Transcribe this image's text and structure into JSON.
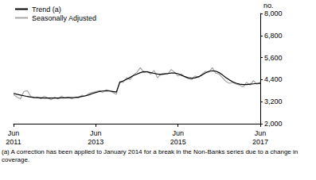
{
  "chart_data": {
    "type": "line",
    "ylabel": "no.",
    "annotations": [
      "(a) A correction has been applied to January 2014 for a break in the Non-Banks series due to a change in coverage."
    ],
    "categories": [
      "Jun\n2011",
      null,
      null,
      null,
      null,
      null,
      null,
      null,
      null,
      null,
      null,
      null,
      null,
      null,
      null,
      null,
      null,
      null,
      null,
      null,
      null,
      null,
      null,
      null,
      "Jun\n2013",
      null,
      null,
      null,
      null,
      null,
      null,
      null,
      null,
      null,
      null,
      null,
      null,
      null,
      null,
      null,
      null,
      null,
      null,
      null,
      null,
      null,
      null,
      null,
      "Jun\n2015",
      null,
      null,
      null,
      null,
      null,
      null,
      null,
      null,
      null,
      null,
      null,
      null,
      null,
      null,
      null,
      null,
      null,
      null,
      null,
      null,
      null,
      null,
      null,
      "Jun\n2017"
    ],
    "series": [
      {
        "name": "Trend (a)",
        "color": "#000000",
        "values": [
          3650,
          3600,
          3560,
          3520,
          3480,
          3450,
          3430,
          3420,
          3410,
          3400,
          3400,
          3400,
          3400,
          3400,
          3410,
          3410,
          3420,
          3420,
          3430,
          3450,
          3480,
          3520,
          3570,
          3640,
          3700,
          3750,
          3780,
          3790,
          3780,
          3750,
          3720,
          4250,
          4330,
          4420,
          4520,
          4620,
          4700,
          4780,
          4830,
          4820,
          4780,
          4740,
          4700,
          4680,
          4700,
          4730,
          4760,
          4760,
          4720,
          4640,
          4560,
          4500,
          4480,
          4500,
          4560,
          4650,
          4760,
          4850,
          4880,
          4860,
          4780,
          4650,
          4500,
          4380,
          4280,
          4200,
          4150,
          4130,
          4130,
          4150,
          4170,
          4190,
          4200
        ]
      },
      {
        "name": "Seasonally Adjusted",
        "color": "#a6a6a6",
        "values": [
          3600,
          3450,
          3350,
          3750,
          3800,
          3500,
          3400,
          3450,
          3350,
          3500,
          3400,
          3300,
          3450,
          3350,
          3500,
          3400,
          3450,
          3350,
          3450,
          3400,
          3550,
          3500,
          3650,
          3700,
          3750,
          3800,
          3700,
          3850,
          3800,
          3700,
          3600,
          4300,
          4250,
          4500,
          4400,
          4650,
          4800,
          5050,
          4800,
          4850,
          4700,
          4900,
          4500,
          4700,
          4750,
          4700,
          4950,
          4800,
          4600,
          4700,
          4550,
          4450,
          4400,
          4600,
          4500,
          4700,
          4850,
          4800,
          5050,
          4750,
          4700,
          4500,
          4300,
          4200,
          4250,
          4150,
          4100,
          4000,
          4250,
          4100,
          4350,
          4150,
          4250
        ]
      }
    ],
    "ylim": [
      2000,
      8000
    ],
    "yticks": [
      2000,
      3200,
      4400,
      5600,
      6800,
      8000
    ],
    "grid": false,
    "legend": "upper left"
  }
}
